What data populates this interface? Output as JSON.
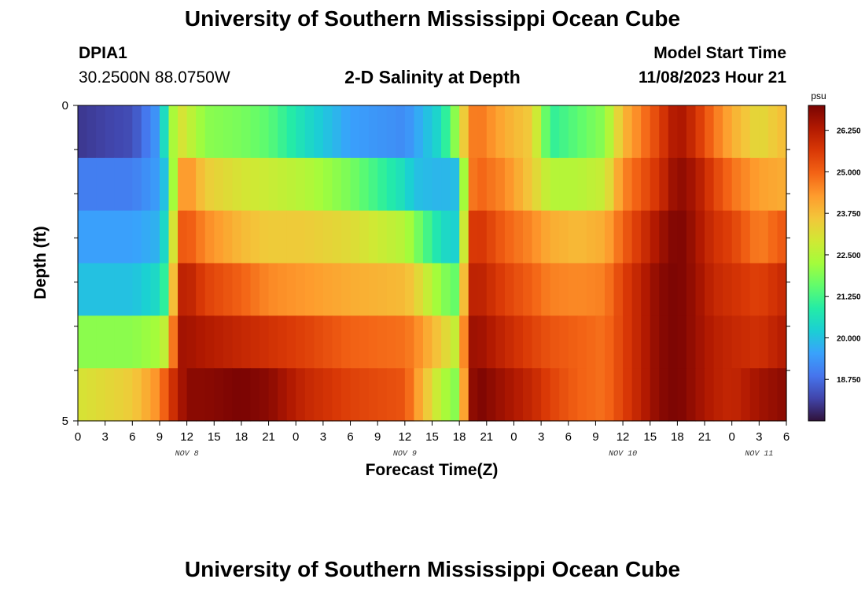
{
  "page": {
    "title_top": "University of Southern Mississippi Ocean Cube",
    "title_bottom": "University of Southern Mississippi Ocean Cube",
    "station_id": "DPIA1",
    "coordinates": "30.2500N  88.0750W",
    "plot_title": "2-D Salinity at Depth",
    "model_start_label": "Model Start Time",
    "model_start_value": "11/08/2023 Hour 21"
  },
  "colors": {
    "background": "#ffffff",
    "colormap": [
      "#30123b",
      "#4145ab",
      "#4675ed",
      "#39a2fc",
      "#1bcfd4",
      "#24eca6",
      "#61fc6c",
      "#a4fc3b",
      "#d1e834",
      "#f3c63a",
      "#fe9b2d",
      "#f36315",
      "#d93806",
      "#b11901",
      "#7a0403"
    ]
  },
  "chart_data": {
    "type": "heatmap",
    "variable": "Salinity",
    "unit": "psu",
    "xlabel": "Forecast Time(Z)",
    "ylabel": "Depth (ft)",
    "x_hours": [
      0,
      1,
      2,
      3,
      4,
      5,
      6,
      7,
      8,
      9,
      10,
      11,
      12,
      13,
      14,
      15,
      16,
      17,
      18,
      19,
      20,
      21,
      22,
      23,
      24,
      25,
      26,
      27,
      28,
      29,
      30,
      31,
      32,
      33,
      34,
      35,
      36,
      37,
      38,
      39,
      40,
      41,
      42,
      43,
      44,
      45,
      46,
      47,
      48,
      49,
      50,
      51,
      52,
      53,
      54,
      55,
      56,
      57,
      58,
      59,
      60,
      61,
      62,
      63,
      64,
      65,
      66,
      67,
      68,
      69,
      70,
      71,
      72,
      73,
      74,
      75,
      76,
      77,
      78
    ],
    "x_tick_labels": [
      "0",
      "3",
      "6",
      "9",
      "12",
      "15",
      "18",
      "21",
      "0",
      "3",
      "6",
      "9",
      "12",
      "15",
      "18",
      "21",
      "0",
      "3",
      "6",
      "9",
      "12",
      "15",
      "18",
      "21",
      "0",
      "3",
      "6"
    ],
    "x_tick_step_hours": 3,
    "date_labels": [
      {
        "label": "NOV 8",
        "hour": 12
      },
      {
        "label": "NOV 9",
        "hour": 36
      },
      {
        "label": "NOV 10",
        "hour": 60
      },
      {
        "label": "NOV 11",
        "hour": 75
      }
    ],
    "y_range": [
      0,
      5
    ],
    "y_tick_labels": [
      {
        "value": 0,
        "label": "0"
      },
      {
        "value": 5,
        "label": "5"
      }
    ],
    "y_minor_ticks": [
      0.7,
      1.4,
      2.1,
      2.8,
      3.5,
      4.2
    ],
    "depth_levels": 6,
    "colorbar": {
      "vmin": 17.5,
      "vmax": 27.0,
      "ticks": [
        18.75,
        20.0,
        21.25,
        22.5,
        23.75,
        25.0,
        26.25
      ],
      "tick_labels": [
        "18.750",
        "20.000",
        "21.250",
        "22.500",
        "23.750",
        "25.000",
        "26.250"
      ]
    },
    "time_keyframes": [
      0,
      6,
      9,
      10,
      11,
      12,
      14,
      18,
      21,
      25,
      30,
      36,
      37,
      40,
      42,
      43,
      44,
      47,
      50,
      52,
      55,
      58,
      60,
      64,
      66,
      67,
      68,
      70,
      72,
      75,
      78
    ],
    "salinity_keyframes": [
      [
        18.0,
        18.3,
        19.5,
        21.5,
        23.2,
        22.8,
        22.0,
        21.8,
        21.5,
        20.5,
        19.5,
        19.2,
        19.5,
        20.5,
        22.5,
        24.5,
        24.8,
        24.0,
        23.5,
        21.0,
        21.5,
        22.0,
        23.8,
        25.5,
        26.5,
        26.2,
        25.8,
        24.8,
        24.0,
        23.2,
        23.8
      ],
      [
        19.0,
        19.0,
        19.5,
        20.5,
        24.0,
        24.5,
        23.5,
        23.0,
        22.8,
        22.5,
        21.8,
        20.5,
        20.0,
        19.8,
        20.0,
        24.5,
        25.0,
        24.5,
        23.5,
        22.5,
        22.5,
        22.8,
        24.5,
        25.8,
        26.8,
        26.6,
        26.4,
        25.5,
        24.8,
        24.2,
        24.0
      ],
      [
        19.5,
        19.5,
        19.8,
        21.0,
        25.0,
        25.2,
        24.5,
        23.8,
        23.5,
        23.5,
        23.2,
        22.5,
        22.0,
        20.5,
        20.2,
        25.5,
        25.8,
        25.0,
        24.5,
        24.0,
        23.8,
        24.0,
        25.0,
        26.5,
        27.0,
        26.8,
        26.5,
        25.8,
        25.5,
        24.6,
        25.2
      ],
      [
        20.0,
        20.0,
        20.5,
        21.5,
        26.0,
        26.2,
        25.5,
        25.0,
        24.5,
        24.3,
        24.0,
        23.8,
        23.5,
        22.0,
        21.5,
        26.0,
        26.2,
        25.5,
        25.0,
        24.6,
        24.5,
        24.6,
        25.5,
        26.8,
        27.0,
        26.8,
        26.6,
        26.0,
        25.8,
        25.5,
        26.0
      ],
      [
        22.0,
        22.0,
        22.3,
        23.0,
        26.5,
        26.5,
        26.3,
        26.0,
        25.8,
        25.5,
        25.0,
        24.8,
        24.6,
        23.5,
        22.5,
        26.5,
        26.6,
        26.0,
        25.5,
        25.2,
        25.0,
        24.8,
        25.5,
        26.8,
        27.0,
        26.8,
        26.6,
        26.2,
        26.0,
        25.8,
        26.3
      ],
      [
        23.0,
        23.5,
        24.5,
        25.5,
        26.2,
        26.8,
        26.8,
        27.0,
        26.8,
        26.0,
        25.5,
        25.2,
        24.5,
        22.5,
        21.8,
        26.5,
        27.0,
        26.5,
        26.0,
        25.5,
        25.0,
        24.8,
        25.5,
        26.8,
        27.0,
        26.8,
        26.6,
        26.2,
        26.0,
        26.5,
        26.8
      ]
    ]
  }
}
